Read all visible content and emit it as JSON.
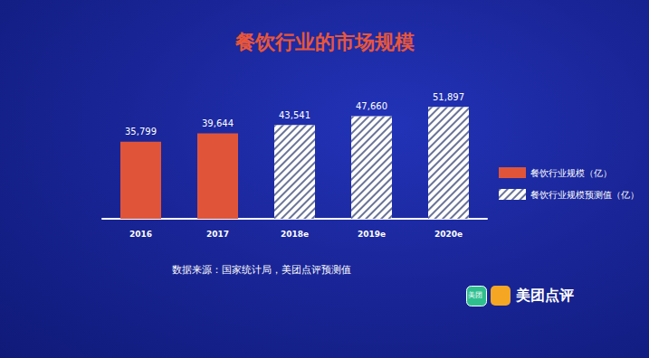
{
  "chart_data": {
    "type": "bar",
    "title": "餐饮行业的市场规模",
    "categories": [
      "2016",
      "2017",
      "2018e",
      "2019e",
      "2020e"
    ],
    "series": [
      {
        "name": "餐饮行业规模（亿）",
        "color": "#e0553a",
        "line_style": "solid",
        "values": [
          35799,
          39644,
          null,
          null,
          null
        ],
        "value_labels": [
          "35,799",
          "39,644",
          null,
          null,
          null
        ]
      },
      {
        "name": "餐饮行业规模预测值（亿）",
        "color": "#ffffff",
        "line_style": "hatched",
        "values": [
          null,
          null,
          43541,
          47660,
          51897
        ],
        "value_labels": [
          null,
          null,
          "43,541",
          "47,660",
          "51,897"
        ]
      }
    ],
    "ylim": [
      0,
      60000
    ],
    "grid": false,
    "legend": "right",
    "data_labels": true,
    "tick_labels": "x",
    "annotations": [
      "数据来源：国家统计局，美团点评预测值",
      "美团",
      "美团点评"
    ]
  }
}
